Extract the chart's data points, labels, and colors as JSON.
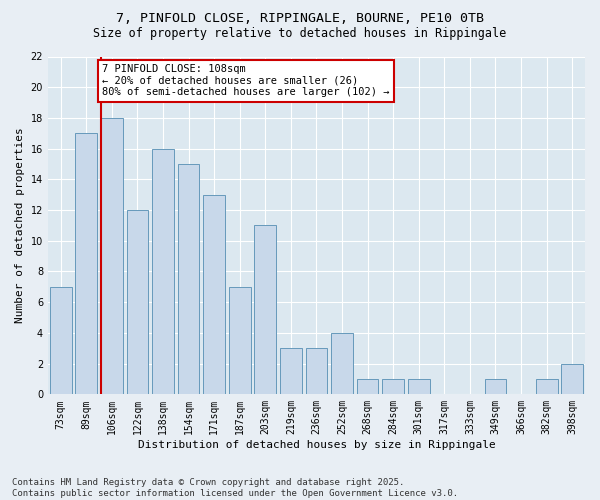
{
  "title1": "7, PINFOLD CLOSE, RIPPINGALE, BOURNE, PE10 0TB",
  "title2": "Size of property relative to detached houses in Rippingale",
  "xlabel": "Distribution of detached houses by size in Rippingale",
  "ylabel": "Number of detached properties",
  "categories": [
    "73sqm",
    "89sqm",
    "106sqm",
    "122sqm",
    "138sqm",
    "154sqm",
    "171sqm",
    "187sqm",
    "203sqm",
    "219sqm",
    "236sqm",
    "252sqm",
    "268sqm",
    "284sqm",
    "301sqm",
    "317sqm",
    "333sqm",
    "349sqm",
    "366sqm",
    "382sqm",
    "398sqm"
  ],
  "values": [
    7,
    17,
    18,
    12,
    16,
    15,
    13,
    7,
    11,
    3,
    3,
    4,
    1,
    1,
    1,
    0,
    0,
    1,
    0,
    1,
    2
  ],
  "bar_color": "#c8d8ea",
  "bar_edge_color": "#6699bb",
  "vline_index": 2,
  "vline_color": "#cc0000",
  "annotation_text": "7 PINFOLD CLOSE: 108sqm\n← 20% of detached houses are smaller (26)\n80% of semi-detached houses are larger (102) →",
  "annotation_box_color": "#ffffff",
  "annotation_edge_color": "#cc0000",
  "ylim": [
    0,
    22
  ],
  "yticks": [
    0,
    2,
    4,
    6,
    8,
    10,
    12,
    14,
    16,
    18,
    20,
    22
  ],
  "background_color": "#dce8f0",
  "fig_background_color": "#e8eef4",
  "footer_text": "Contains HM Land Registry data © Crown copyright and database right 2025.\nContains public sector information licensed under the Open Government Licence v3.0.",
  "title_fontsize": 9.5,
  "subtitle_fontsize": 8.5,
  "axis_label_fontsize": 8,
  "tick_fontsize": 7,
  "annotation_fontsize": 7.5,
  "footer_fontsize": 6.5
}
